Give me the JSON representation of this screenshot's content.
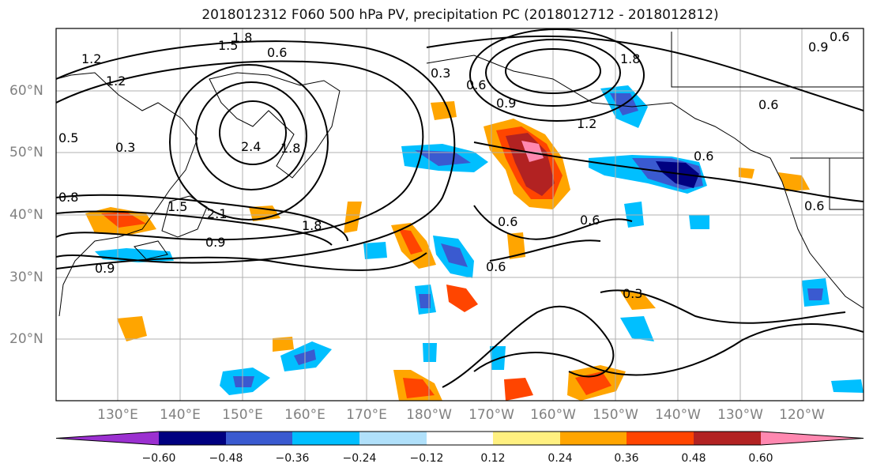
{
  "title": "2018012312 F060 500 hPa PV, precipitation PC (2018012712 - 2018012812)",
  "map": {
    "lon_labels": [
      "130°E",
      "140°E",
      "150°E",
      "160°E",
      "170°E",
      "180°W",
      "170°W",
      "160°W",
      "150°W",
      "140°W",
      "130°W",
      "120°W"
    ],
    "lat_labels": [
      "60°N",
      "50°N",
      "40°N",
      "30°N",
      "20°N"
    ],
    "contour_labels": [
      "1.8",
      "1.5",
      "1.2",
      "1.2",
      "0.6",
      "0.3",
      "0.3",
      "0.6",
      "0.9",
      "1.2",
      "1.8",
      "0.6",
      "0.9",
      "0.6",
      "2.4",
      "1.8",
      "1.5",
      "1.8",
      "2.1",
      "0.9",
      "0.9",
      "0.6",
      "0.6",
      "0.6",
      "0.6",
      "0.3",
      "0.8",
      "0.6",
      "0.5"
    ],
    "fill_colors": {
      "neg_060": "#9b30d0",
      "neg_048": "#000080",
      "neg_036": "#3a5ad0",
      "neg_024": "#00bfff",
      "neg_012": "#b0e0fa",
      "pos_012": "#fff080",
      "pos_024": "#ffa500",
      "pos_036": "#ff4500",
      "pos_048": "#b22222",
      "pos_060": "#ff88b0"
    }
  },
  "colorbar": {
    "ticks": [
      "−0.60",
      "−0.48",
      "−0.36",
      "−0.24",
      "−0.12",
      "0.12",
      "0.24",
      "0.36",
      "0.48",
      "0.60"
    ],
    "colors": [
      "#9b30d0",
      "#000080",
      "#3a5ad0",
      "#00bfff",
      "#b0e0fa",
      "#ffffff",
      "#fff080",
      "#ffa500",
      "#ff4500",
      "#b22222",
      "#ff88b0"
    ]
  }
}
